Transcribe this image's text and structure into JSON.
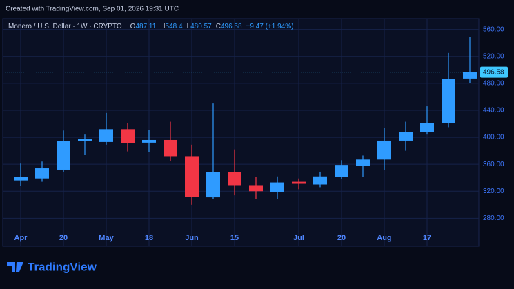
{
  "chart_data": {
    "type": "candlestick",
    "watermark": "Created with TradingView.com, Sep 01, 2026 19:31 UTC",
    "title": "Monero / U.S. Dollar · 1W · CRYPTO",
    "ohlc_letters": [
      "O",
      "H",
      "L",
      "C"
    ],
    "change": "+9.47 (+1.94%)",
    "categories": [
      "Apr",
      null,
      "20",
      null,
      "May",
      null,
      "18",
      null,
      "Jun",
      null,
      "15",
      null,
      null,
      "Jul",
      null,
      "20",
      null,
      "Aug",
      null,
      "17",
      null,
      null
    ],
    "open": [
      336,
      339,
      352,
      394,
      393,
      412,
      392,
      396,
      372,
      311,
      348,
      329,
      319,
      334,
      330,
      341,
      358,
      367,
      395,
      408,
      421,
      487.11
    ],
    "high": [
      361,
      364,
      410,
      404,
      436,
      421,
      411,
      423,
      389,
      450,
      382,
      341,
      342,
      339,
      349,
      366,
      373,
      414,
      423,
      446,
      525,
      548.4
    ],
    "low": [
      328,
      334,
      348,
      374,
      389,
      379,
      378,
      365,
      300,
      308,
      314,
      309,
      309,
      323,
      326,
      338,
      341,
      352,
      380,
      404,
      415,
      480.57
    ],
    "close": [
      341,
      354,
      394,
      397,
      412,
      391,
      396,
      372,
      312,
      348,
      329,
      320,
      333,
      331,
      342,
      359,
      367,
      395,
      408,
      421,
      487,
      496.58
    ],
    "up_color": "#2f9bff",
    "down_color": "#f23645",
    "ylim": [
      263,
      576
    ],
    "yticks": [
      {
        "value": 280,
        "label": "280.00"
      },
      {
        "value": 320,
        "label": "320.00"
      },
      {
        "value": 360,
        "label": "360.00"
      },
      {
        "value": 400,
        "label": "400.00"
      },
      {
        "value": 440,
        "label": "440.00"
      },
      {
        "value": 480,
        "label": "480.00"
      },
      {
        "value": 520,
        "label": "520.00"
      },
      {
        "value": 560,
        "label": "560.00"
      }
    ],
    "grid": true,
    "last_price_line": true
  },
  "brand": "TradingView"
}
